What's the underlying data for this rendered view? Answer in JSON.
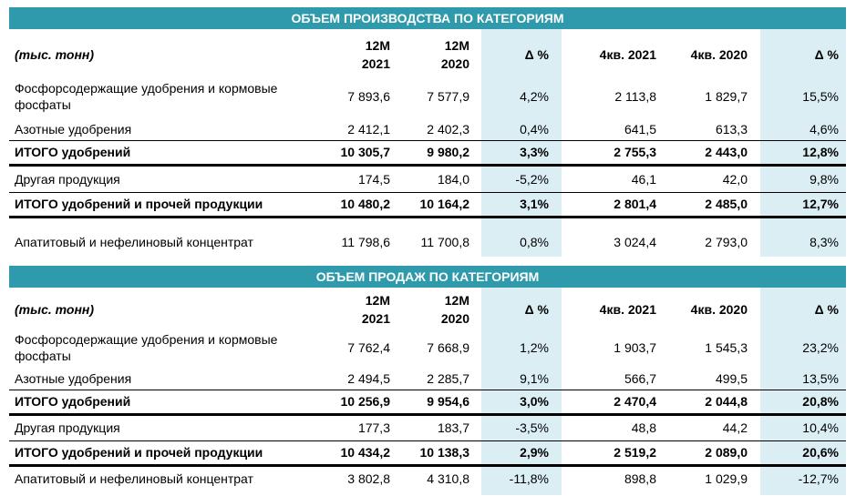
{
  "production": {
    "title": "ОБЪЕМ ПРОИЗВОДСТВА ПО КАТЕГОРИЯМ",
    "header": {
      "unit": "(тыс. тонн)",
      "col1": [
        "12M",
        "2021"
      ],
      "col2": [
        "12M",
        "2020"
      ],
      "col3": "Δ %",
      "col4": "4кв. 2021",
      "col5": "4кв. 2020",
      "col6": "Δ %"
    },
    "rows": [
      {
        "label": "Фосфорсодержащие удобрения и кормовые фосфаты",
        "v": [
          "7 893,6",
          "7 577,9",
          "4,2%",
          "2 113,8",
          "1 829,7",
          "15,5%"
        ]
      },
      {
        "label": "Азотные удобрения",
        "v": [
          "2 412,1",
          "2 402,3",
          "0,4%",
          "641,5",
          "613,3",
          "4,6%"
        ]
      },
      {
        "label": "ИТОГО удобрений",
        "v": [
          "10 305,7",
          "9 980,2",
          "3,3%",
          "2 755,3",
          "2 443,0",
          "12,8%"
        ]
      },
      {
        "label": "Другая продукция",
        "v": [
          "174,5",
          "184,0",
          "-5,2%",
          "46,1",
          "42,0",
          "9,8%"
        ]
      },
      {
        "label": "ИТОГО удобрений и прочей продукции",
        "v": [
          "10 480,2",
          "10 164,2",
          "3,1%",
          "2 801,4",
          "2 485,0",
          "12,7%"
        ]
      },
      {
        "label": "Апатитовый и нефелиновый концентрат",
        "v": [
          "11 798,6",
          "11 700,8",
          "0,8%",
          "3 024,4",
          "2 793,0",
          "8,3%"
        ]
      }
    ]
  },
  "sales": {
    "title": "ОБЪЕМ ПРОДАЖ ПО КАТЕГОРИЯМ",
    "header": {
      "unit": "(тыс. тонн)",
      "col1": [
        "12M",
        "2021"
      ],
      "col2": [
        "12M",
        "2020"
      ],
      "col3": "Δ %",
      "col4": "4кв. 2021",
      "col5": "4кв. 2020",
      "col6": "Δ %"
    },
    "rows": [
      {
        "label": "Фосфорсодержащие удобрения и кормовые фосфаты",
        "v": [
          "7 762,4",
          "7 668,9",
          "1,2%",
          "1 903,7",
          "1 545,3",
          "23,2%"
        ]
      },
      {
        "label": "Азотные удобрения",
        "v": [
          "2 494,5",
          "2 285,7",
          "9,1%",
          "566,7",
          "499,5",
          "13,5%"
        ]
      },
      {
        "label": "ИТОГО удобрений",
        "v": [
          "10 256,9",
          "9 954,6",
          "3,0%",
          "2 470,4",
          "2 044,8",
          "20,8%"
        ]
      },
      {
        "label": "Другая продукция",
        "v": [
          "177,3",
          "183,7",
          "-3,5%",
          "48,8",
          "44,2",
          "10,4%"
        ]
      },
      {
        "label": "ИТОГО удобрений и прочей продукции",
        "v": [
          "10 434,2",
          "10 138,3",
          "2,9%",
          "2 519,2",
          "2 089,0",
          "20,6%"
        ]
      },
      {
        "label": "Апатитовый и нефелиновый концентрат",
        "v": [
          "3 802,8",
          "4 310,8",
          "-11,8%",
          "898,8",
          "1 029,9",
          "-12,7%"
        ]
      }
    ]
  },
  "colors": {
    "band": "#2f9aab",
    "shade": "#daeef3"
  }
}
